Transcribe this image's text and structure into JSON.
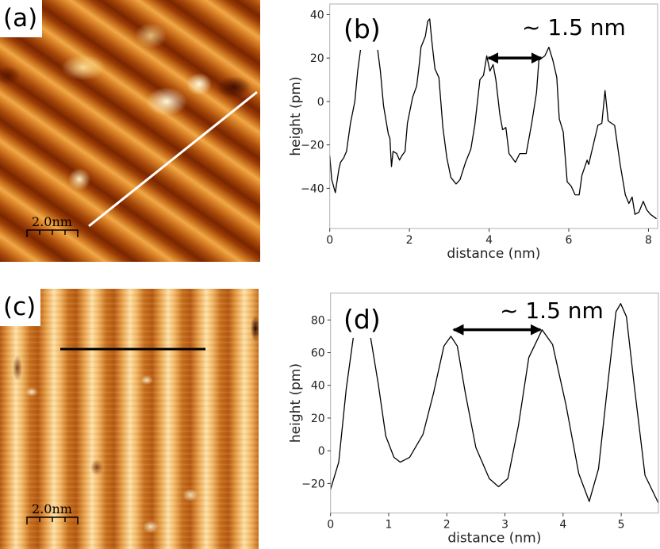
{
  "panels": {
    "a": {
      "label": "(a)",
      "scale_bar": "2.0nm",
      "line_color": "#ffffff"
    },
    "c": {
      "label": "(c)",
      "scale_bar": "2.0nm",
      "line_color": "#000000"
    }
  },
  "colors": {
    "stm_dark": "#7a2600",
    "stm_mid": "#d07a22",
    "stm_bright": "#ffe2a8",
    "plot_line": "#000000",
    "frame": "#b0b0b0"
  },
  "chart_data": [
    {
      "id": "b",
      "type": "line",
      "panel_label": "(b)",
      "annotation": "~ 1.5 nm",
      "annotation_arrow": {
        "x_from": 3.94,
        "x_to": 5.35,
        "y": 20
      },
      "xlabel": "distance (nm)",
      "ylabel": "height (pm)",
      "xlim": [
        0,
        8.23
      ],
      "ylim": [
        -58.5,
        44.9
      ],
      "xticks": [
        0,
        2,
        4,
        6,
        8
      ],
      "yticks": [
        -40,
        -20,
        0,
        20,
        40
      ],
      "grid": false,
      "x": [
        0,
        0.05,
        0.14,
        0.23,
        0.27,
        0.35,
        0.42,
        0.52,
        0.63,
        0.7,
        0.78,
        0.9,
        1.0,
        1.1,
        1.2,
        1.27,
        1.35,
        1.47,
        1.51,
        1.55,
        1.59,
        1.68,
        1.75,
        1.81,
        1.89,
        1.95,
        2.08,
        2.18,
        2.24,
        2.29,
        2.4,
        2.46,
        2.51,
        2.56,
        2.64,
        2.74,
        2.84,
        2.94,
        3.04,
        3.17,
        3.27,
        3.41,
        3.54,
        3.64,
        3.77,
        3.86,
        3.94,
        4.02,
        4.1,
        4.17,
        4.27,
        4.34,
        4.42,
        4.5,
        4.66,
        4.77,
        4.93,
        5.07,
        5.19,
        5.25,
        5.4,
        5.5,
        5.6,
        5.7,
        5.76,
        5.86,
        5.96,
        6.06,
        6.16,
        6.26,
        6.33,
        6.46,
        6.5,
        6.59,
        6.73,
        6.83,
        6.91,
        6.99,
        7.15,
        7.29,
        7.42,
        7.51,
        7.59,
        7.66,
        7.76,
        7.87,
        7.96,
        8.05,
        8.2
      ],
      "y": [
        -25,
        -36,
        -42,
        -31,
        -28,
        -26,
        -23,
        -10,
        0,
        14,
        25,
        33,
        35,
        32,
        24,
        14,
        -2,
        -15,
        -17,
        -30,
        -23,
        -24,
        -27,
        -25,
        -23,
        -10,
        2,
        7,
        16,
        25,
        30,
        37,
        38,
        28,
        15,
        11,
        -12,
        -26,
        -35,
        -38,
        -36,
        -28,
        -22,
        -11,
        10,
        12,
        21,
        14,
        17,
        10,
        -6,
        -13,
        -12,
        -24,
        -28,
        -24,
        -24,
        -10,
        4,
        19,
        21,
        25,
        19,
        11,
        -8,
        -14,
        -37,
        -39,
        -43,
        -43,
        -34,
        -27,
        -29,
        -22,
        -11,
        -10,
        5,
        -9,
        -11,
        -29,
        -43,
        -47,
        -44,
        -52,
        -51,
        -46,
        -50,
        -52,
        -54
      ]
    },
    {
      "id": "d",
      "type": "line",
      "panel_label": "(d)",
      "annotation": "~ 1.5 nm",
      "annotation_arrow": {
        "x_from": 2.09,
        "x_to": 3.64,
        "y": 74
      },
      "xlabel": "distance (nm)",
      "ylabel": "height (pm)",
      "xlim": [
        0,
        5.64
      ],
      "ylim": [
        -38.1,
        96.5
      ],
      "xticks": [
        0,
        1,
        2,
        3,
        4,
        5
      ],
      "yticks": [
        -20,
        0,
        20,
        40,
        60,
        80
      ],
      "grid": false,
      "x": [
        0,
        0.14,
        0.27,
        0.39,
        0.46,
        0.54,
        0.62,
        0.69,
        0.82,
        0.95,
        1.09,
        1.2,
        1.36,
        1.59,
        1.77,
        1.95,
        2.07,
        2.18,
        2.32,
        2.5,
        2.73,
        2.89,
        3.05,
        3.23,
        3.41,
        3.64,
        3.82,
        4.05,
        4.27,
        4.45,
        4.61,
        4.77,
        4.91,
        4.99,
        5.09,
        5.23,
        5.41,
        5.64
      ],
      "y": [
        -23.6,
        -7,
        38,
        69,
        85,
        88,
        82,
        69,
        41,
        9,
        -4,
        -7,
        -4,
        10,
        35,
        64,
        70,
        64,
        35,
        2,
        -17,
        -22,
        -17,
        15,
        57,
        74,
        65,
        28,
        -14,
        -31,
        -11,
        41,
        85,
        90,
        82,
        38,
        -15,
        -32
      ]
    }
  ]
}
